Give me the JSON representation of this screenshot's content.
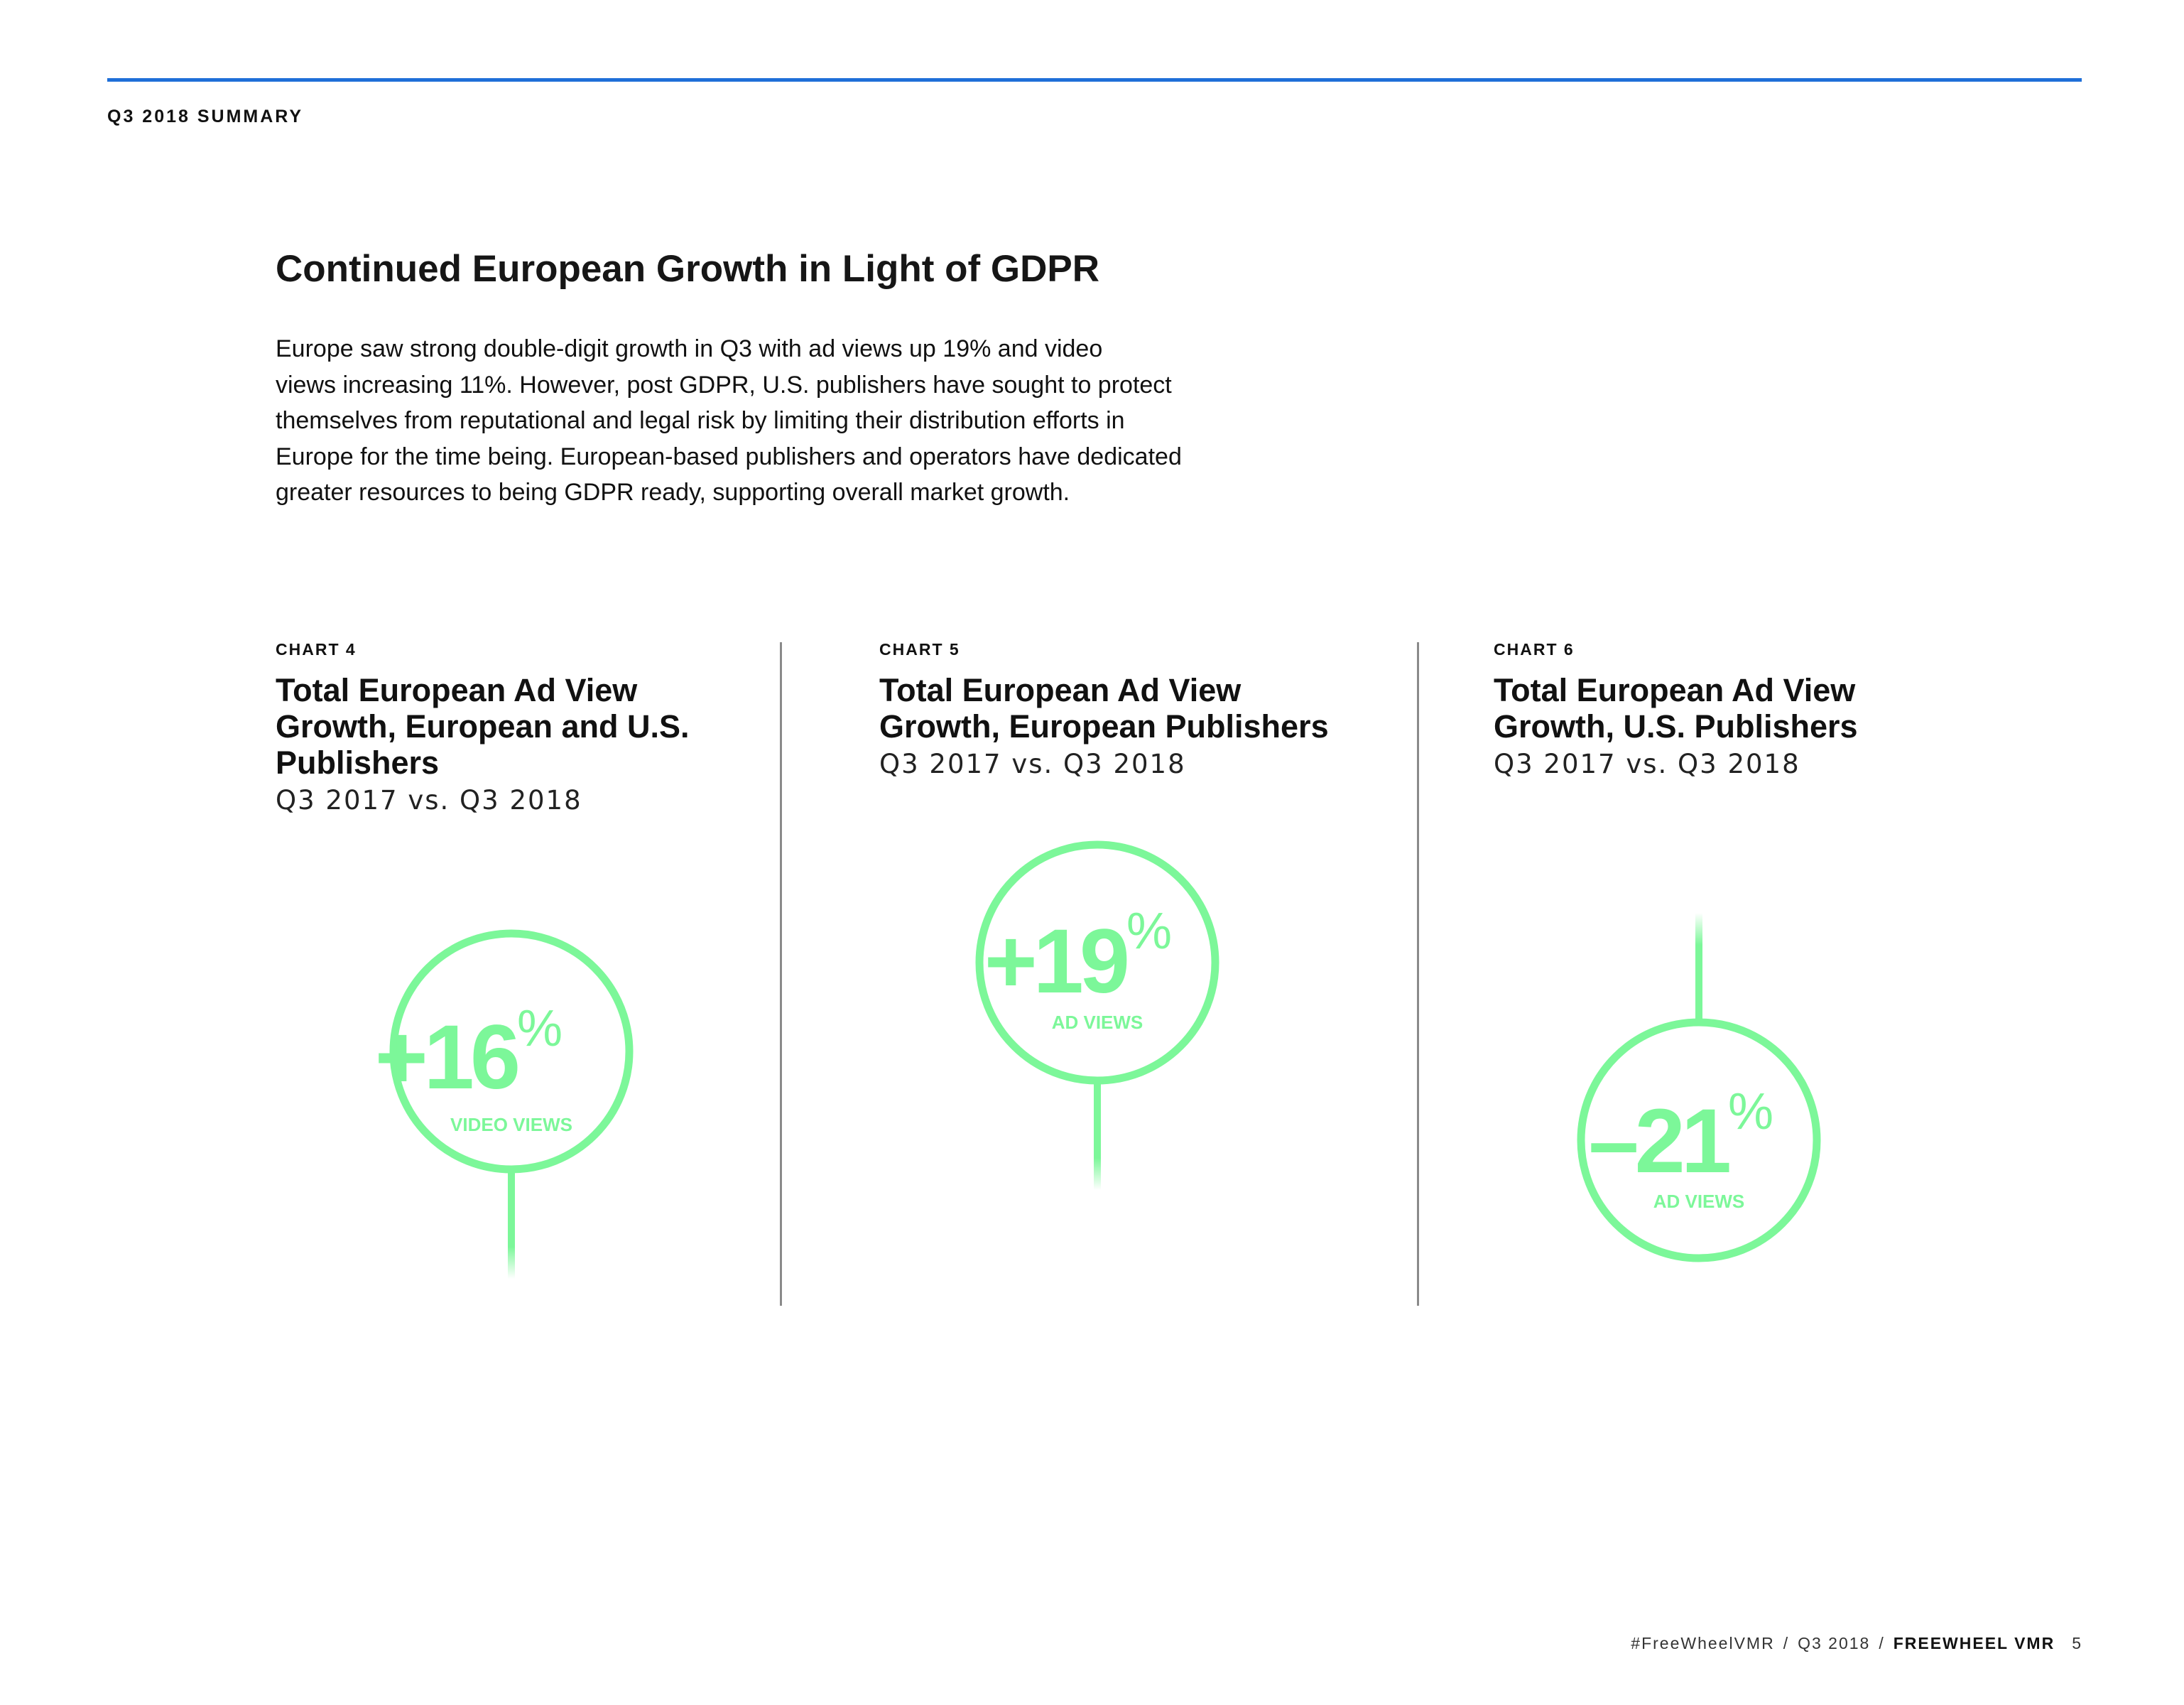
{
  "section_label": "Q3 2018 SUMMARY",
  "title": "Continued European Growth in Light of GDPR",
  "intro_lines": [
    "Europe saw strong double-digit growth in Q3 with ad views up 19% and video",
    "views increasing 11%. However, post GDPR, U.S. publishers have sought to protect",
    "themselves from reputational and legal risk by limiting their distribution efforts in",
    "Europe for the time being. European-based publishers and operators have dedicated",
    "greater resources to being GDPR ready, supporting overall market growth."
  ],
  "charts": [
    {
      "label": "CHART 4",
      "title_lines": [
        "Total European Ad View",
        "Growth, European and U.S.",
        "Publishers"
      ],
      "subtitle": "Q3 2017 vs. Q3 2018",
      "value": "+16",
      "unit": "%",
      "metric": "VIDEO VIEWS"
    },
    {
      "label": "CHART 5",
      "title_lines": [
        "Total European Ad View",
        "Growth, European Publishers"
      ],
      "subtitle": "Q3 2017 vs. Q3 2018",
      "value": "+19",
      "unit": "%",
      "metric": "AD VIEWS"
    },
    {
      "label": "CHART 6",
      "title_lines": [
        "Total European Ad View",
        "Growth, U.S. Publishers"
      ],
      "subtitle": "Q3 2017 vs. Q3 2018",
      "value": "–21",
      "unit": "%",
      "metric": "AD VIEWS"
    }
  ],
  "footer": {
    "hashtag": "#FreeWheelVMR",
    "period": "Q3 2018",
    "brand": "FREEWHEEL VMR",
    "page_number": "5"
  },
  "colors": {
    "accent_rule": "#1f6fd8",
    "bubble_green": "#7cf799",
    "divider": "#8a8a8a"
  }
}
